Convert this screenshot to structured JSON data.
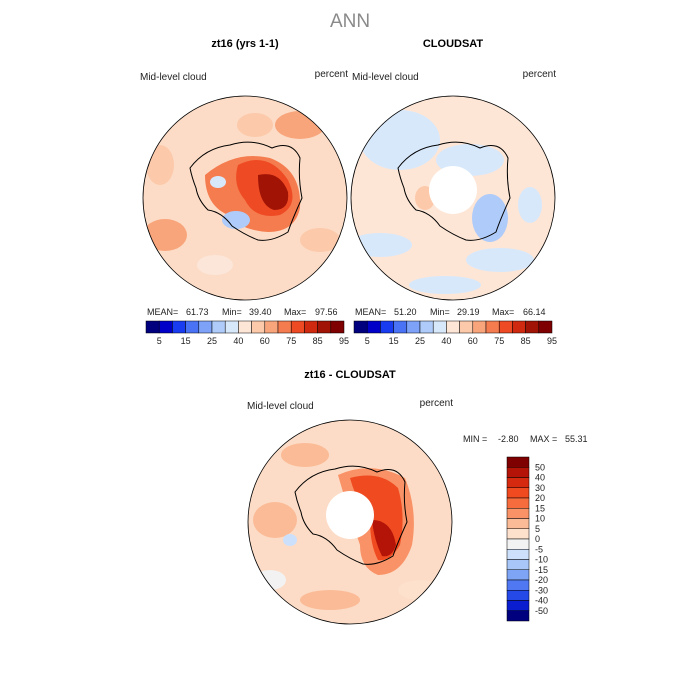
{
  "figure": {
    "title": "ANN"
  },
  "chart_data": [
    {
      "type": "heatmap",
      "projection": "south-polar-stereographic",
      "title": "zt16 (yrs 1-1)",
      "variable": "Mid-level cloud",
      "units": "percent",
      "stats": {
        "mean_label": "MEAN=",
        "mean": "61.73",
        "min_label": "Min=",
        "min": "39.40",
        "max_label": "Max=",
        "max": "97.56"
      },
      "colorbar": {
        "orientation": "horizontal",
        "levels": [
          5,
          15,
          25,
          40,
          60,
          75,
          85,
          95
        ],
        "colors": [
          "#00007f",
          "#0000c8",
          "#1a3cf0",
          "#4a72f5",
          "#7da2f7",
          "#aecbf9",
          "#d8e8fb",
          "#fde6d6",
          "#fcc9aa",
          "#f9a57c",
          "#f57c4f",
          "#ee4b24",
          "#cf2a10",
          "#a11405",
          "#7f0000"
        ]
      }
    },
    {
      "type": "heatmap",
      "projection": "south-polar-stereographic",
      "title": "CLOUDSAT",
      "variable": "Mid-level cloud",
      "units": "percent",
      "stats": {
        "mean_label": "MEAN=",
        "mean": "51.20",
        "min_label": "Min=",
        "min": "29.19",
        "max_label": "Max=",
        "max": "66.14"
      },
      "colorbar": {
        "orientation": "horizontal",
        "levels": [
          5,
          15,
          25,
          40,
          60,
          75,
          85,
          95
        ],
        "colors": [
          "#00007f",
          "#0000c8",
          "#1a3cf0",
          "#4a72f5",
          "#7da2f7",
          "#aecbf9",
          "#d8e8fb",
          "#fde6d6",
          "#fcc9aa",
          "#f9a57c",
          "#f57c4f",
          "#ee4b24",
          "#cf2a10",
          "#a11405",
          "#7f0000"
        ]
      }
    },
    {
      "type": "heatmap",
      "projection": "south-polar-stereographic",
      "title": "zt16 - CLOUDSAT",
      "variable": "Mid-level cloud",
      "units": "percent",
      "stats": {
        "min_label": "MIN =",
        "min": "-2.80",
        "max_label": "MAX =",
        "max": "55.31"
      },
      "colorbar": {
        "orientation": "vertical",
        "levels": [
          50,
          40,
          30,
          20,
          15,
          10,
          5,
          0,
          -5,
          -10,
          -15,
          -20,
          -30,
          -40,
          -50
        ],
        "colors": [
          "#7f0000",
          "#b31407",
          "#d62a10",
          "#f04a20",
          "#f66c3c",
          "#f99266",
          "#fbbb97",
          "#fde1cd",
          "#f2f2f2",
          "#cde0fb",
          "#a8c6f8",
          "#7ea4f6",
          "#4f78f2",
          "#2549e8",
          "#0a1ed0",
          "#00007f"
        ]
      }
    }
  ]
}
